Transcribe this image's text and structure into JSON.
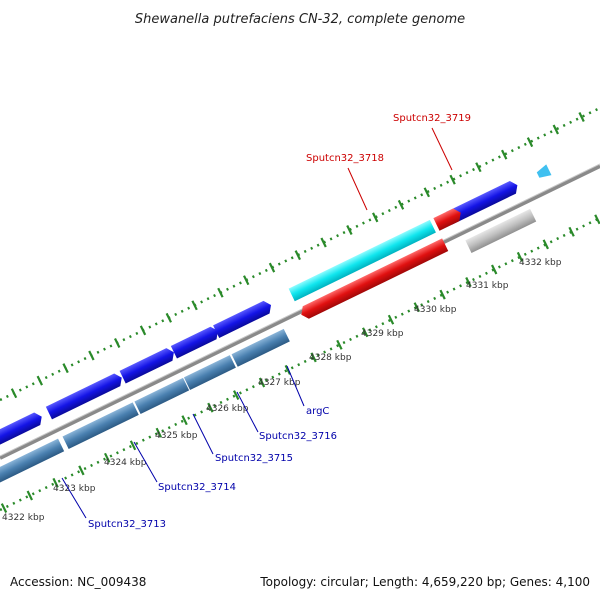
{
  "title": "Shewanella putrefaciens CN-32, complete genome",
  "footer": {
    "accession": "Accession: NC_009438",
    "summary": "Topology: circular; Length: 4,659,220 bp; Genes: 4,100"
  },
  "colors": {
    "forward_gene": "#1010e0",
    "reverse_gene": "#4a80b0",
    "highlight_cyan": "#00e8ee",
    "highlight_red": "#e01010",
    "gray_gene": "#c0c0c0",
    "backbone": "#888888",
    "ticks": "#2a8a2a",
    "label_blue": "#0000aa",
    "label_red": "#cc0000"
  },
  "scale_labels": [
    "4322 kbp",
    "4323 kbp",
    "4324 kbp",
    "4325 kbp",
    "4326 kbp",
    "4327 kbp",
    "4328 kbp",
    "4329 kbp",
    "4330 kbp",
    "4331 kbp",
    "4332 kbp"
  ],
  "gene_labels": [
    {
      "text": "Sputcn32_3713",
      "color": "blue"
    },
    {
      "text": "Sputcn32_3714",
      "color": "blue"
    },
    {
      "text": "Sputcn32_3715",
      "color": "blue"
    },
    {
      "text": "Sputcn32_3716",
      "color": "blue"
    },
    {
      "text": "argC",
      "color": "blue"
    },
    {
      "text": "Sputcn32_3718",
      "color": "red"
    },
    {
      "text": "Sputcn32_3719",
      "color": "red"
    }
  ]
}
